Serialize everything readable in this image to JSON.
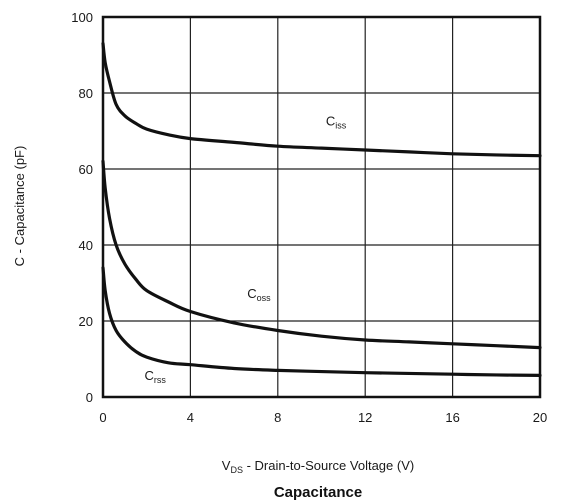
{
  "chart_data": {
    "type": "line",
    "title": "Capacitance",
    "xlabel": {
      "prefix": "V",
      "sub": "DS",
      "rest": " - Drain-to-Source Voltage (V)"
    },
    "ylabel": "C - Capacitance (pF)",
    "xlim": [
      0,
      20
    ],
    "ylim": [
      0,
      100
    ],
    "xticks": [
      0,
      4,
      8,
      12,
      16,
      20
    ],
    "yticks": [
      0,
      20,
      40,
      60,
      80,
      100
    ],
    "grid": true,
    "series": [
      {
        "name": "Ciss",
        "label": {
          "main": "C",
          "sub": "iss"
        },
        "x": [
          0,
          0.1,
          0.3,
          0.6,
          1,
          1.5,
          2,
          3,
          4,
          6,
          8,
          10,
          12,
          14,
          16,
          18,
          20
        ],
        "y": [
          93,
          88,
          83,
          77,
          74,
          72,
          70.5,
          69,
          68,
          67,
          66,
          65.5,
          65,
          64.5,
          64,
          63.7,
          63.5
        ]
      },
      {
        "name": "Coss",
        "label": {
          "main": "C",
          "sub": "oss"
        },
        "x": [
          0,
          0.1,
          0.3,
          0.6,
          1,
          1.5,
          2,
          3,
          4,
          6,
          8,
          10,
          12,
          14,
          16,
          18,
          20
        ],
        "y": [
          62,
          55,
          47,
          40,
          35,
          31,
          28,
          25,
          22.5,
          19.5,
          17.5,
          16,
          15,
          14.5,
          14,
          13.5,
          13
        ]
      },
      {
        "name": "Crss",
        "label": {
          "main": "C",
          "sub": "rss"
        },
        "x": [
          0,
          0.1,
          0.3,
          0.6,
          1,
          1.5,
          2,
          3,
          4,
          6,
          8,
          10,
          12,
          14,
          16,
          18,
          20
        ],
        "y": [
          34,
          28,
          22,
          17.5,
          14.5,
          12,
          10.5,
          9,
          8.5,
          7.5,
          7,
          6.7,
          6.4,
          6.2,
          6,
          5.8,
          5.7
        ]
      }
    ]
  }
}
